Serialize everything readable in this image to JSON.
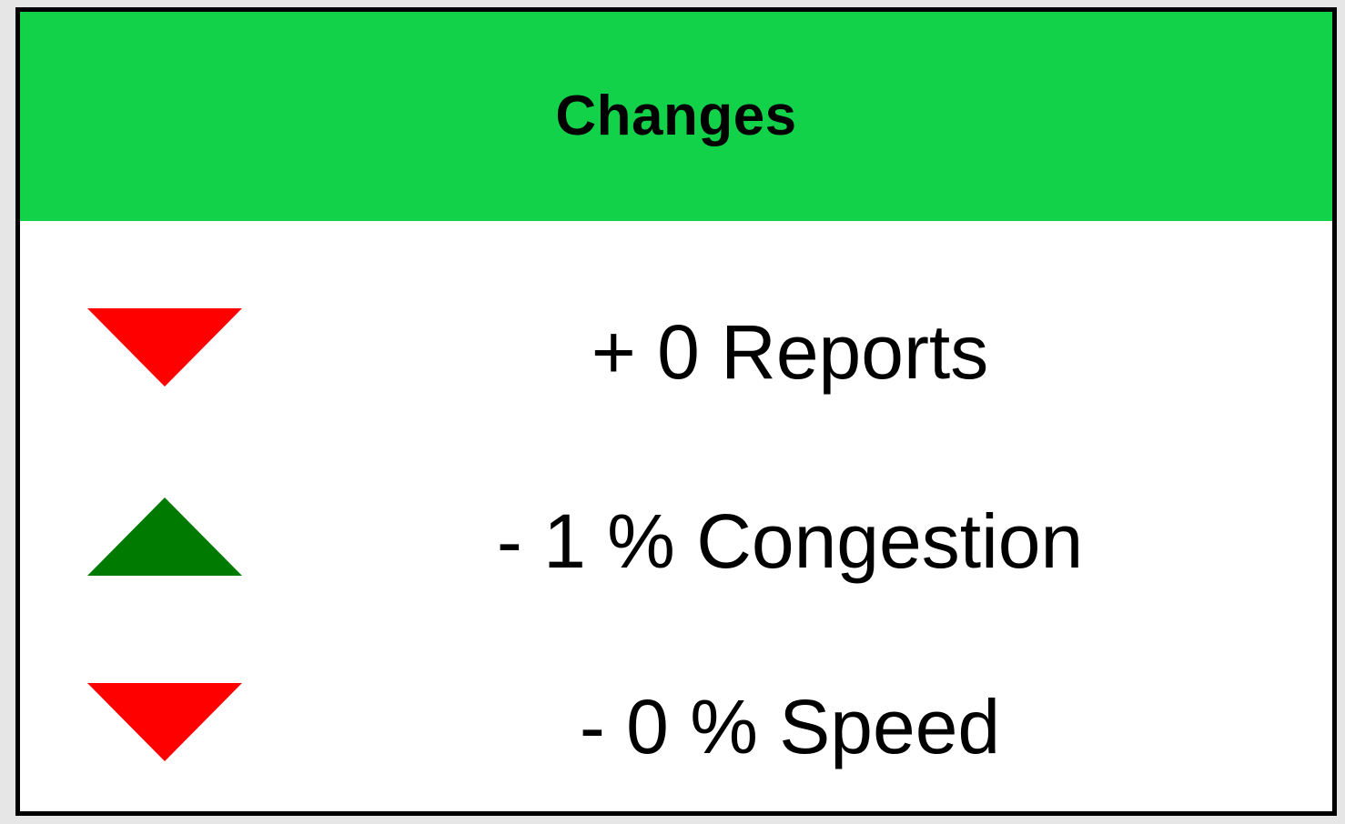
{
  "card": {
    "title": "Changes",
    "header_color": "#12d24a"
  },
  "changes": [
    {
      "text": "+ 0 Reports",
      "indicator": "down-triangle-icon",
      "indicator_color": "#ff0000"
    },
    {
      "text": "- 1 % Congestion",
      "indicator": "up-triangle-icon",
      "indicator_color": "#007a00"
    },
    {
      "text": "- 0 % Speed",
      "indicator": "down-triangle-icon",
      "indicator_color": "#ff0000"
    }
  ]
}
